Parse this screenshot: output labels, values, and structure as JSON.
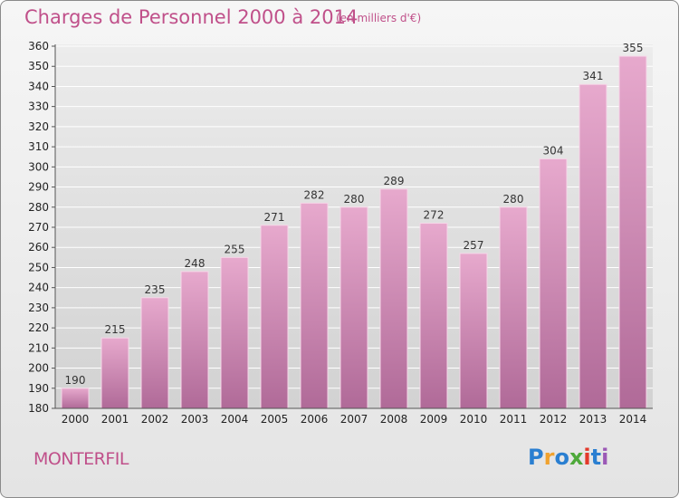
{
  "header": {
    "title": "Charges de Personnel 2000 à 2014",
    "unit": "(en milliers d'€)"
  },
  "footer": {
    "commune": "MONTERFIL",
    "logo_letters": [
      "P",
      "r",
      "o",
      "x",
      "i",
      "t",
      "i"
    ]
  },
  "colors": {
    "accent": "#c0508a",
    "bar_top": "#e7a9cd",
    "bar_bottom": "#b06a98"
  },
  "chart_data": {
    "type": "bar",
    "title": "Charges de Personnel 2000 à 2014",
    "categories": [
      "2000",
      "2001",
      "2002",
      "2003",
      "2004",
      "2005",
      "2006",
      "2007",
      "2008",
      "2009",
      "2010",
      "2011",
      "2012",
      "2013",
      "2014"
    ],
    "values": [
      190,
      215,
      235,
      248,
      255,
      271,
      282,
      280,
      289,
      272,
      257,
      280,
      304,
      341,
      355
    ],
    "ylim": [
      180,
      360
    ],
    "yticks": [
      180,
      190,
      200,
      210,
      220,
      230,
      240,
      250,
      260,
      270,
      280,
      290,
      300,
      310,
      320,
      330,
      340,
      350,
      360
    ],
    "grid": true,
    "xlabel": "",
    "ylabel": ""
  }
}
